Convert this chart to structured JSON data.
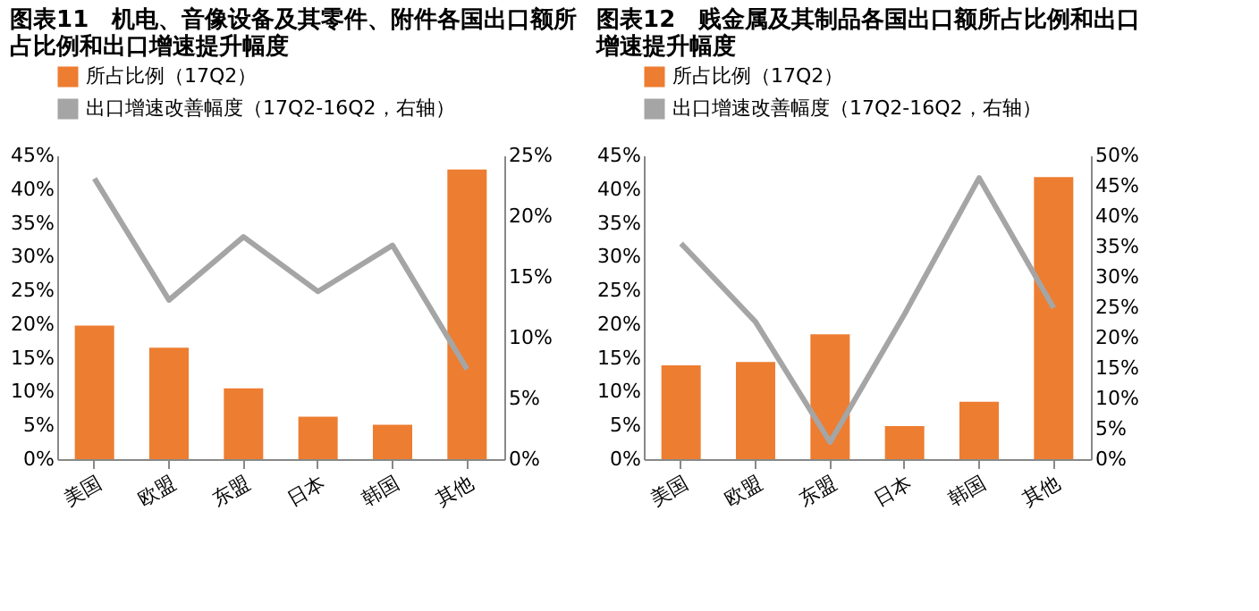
{
  "chart_data": [
    {
      "type": "bar",
      "title": [
        "图表11　机电、音像设备及其零件、附件各国出口额所",
        "占比例和出口增速提升幅度"
      ],
      "categories": [
        "美国",
        "欧盟",
        "东盟",
        "日本",
        "韩国",
        "其他"
      ],
      "legend": "top",
      "grid": false,
      "series": [
        {
          "name": "所占比例（17Q2）",
          "color": "#ed7d31",
          "values": [
            19.8,
            16.5,
            10.5,
            6.3,
            5.1,
            42.9
          ]
        },
        {
          "name": "出口增速改善幅度（17Q2-16Q2，右轴）",
          "color": "#a5a5a5",
          "type": "line",
          "axis": "y2",
          "values": [
            23.1,
            13.1,
            18.3,
            13.8,
            17.6,
            7.4
          ]
        }
      ],
      "ylim": [
        0,
        45
      ],
      "yticks": [
        {
          "value": 0,
          "label": "0%"
        },
        {
          "value": 5,
          "label": "5%"
        },
        {
          "value": 10,
          "label": "10%"
        },
        {
          "value": 15,
          "label": "15%"
        },
        {
          "value": 20,
          "label": "20%"
        },
        {
          "value": 25,
          "label": "25%"
        },
        {
          "value": 30,
          "label": "30%"
        },
        {
          "value": 35,
          "label": "35%"
        },
        {
          "value": 40,
          "label": "40%"
        },
        {
          "value": 45,
          "label": "45%"
        }
      ],
      "y2lim": [
        0,
        25
      ],
      "y2ticks": [
        {
          "value": 0,
          "label": "0%"
        },
        {
          "value": 5,
          "label": "5%"
        },
        {
          "value": 10,
          "label": "10%"
        },
        {
          "value": 15,
          "label": "15%"
        },
        {
          "value": 20,
          "label": "20%"
        },
        {
          "value": 25,
          "label": "25%"
        }
      ]
    },
    {
      "type": "bar",
      "title": [
        "图表12　贱金属及其制品各国出口额所占比例和出口",
        "增速提升幅度"
      ],
      "categories": [
        "美国",
        "欧盟",
        "东盟",
        "日本",
        "韩国",
        "其他"
      ],
      "legend": "top",
      "grid": false,
      "series": [
        {
          "name": "所占比例（17Q2）",
          "color": "#ed7d31",
          "values": [
            13.9,
            14.4,
            18.5,
            4.9,
            8.5,
            41.8
          ]
        },
        {
          "name": "出口增速改善幅度（17Q2-16Q2，右轴）",
          "color": "#a5a5a5",
          "type": "line",
          "axis": "y2",
          "values": [
            35.5,
            22.6,
            2.8,
            23.9,
            46.3,
            24.9
          ]
        }
      ],
      "ylim": [
        0,
        45
      ],
      "yticks": [
        {
          "value": 0,
          "label": "0%"
        },
        {
          "value": 5,
          "label": "5%"
        },
        {
          "value": 10,
          "label": "10%"
        },
        {
          "value": 15,
          "label": "15%"
        },
        {
          "value": 20,
          "label": "20%"
        },
        {
          "value": 25,
          "label": "25%"
        },
        {
          "value": 30,
          "label": "30%"
        },
        {
          "value": 35,
          "label": "35%"
        },
        {
          "value": 40,
          "label": "40%"
        },
        {
          "value": 45,
          "label": "45%"
        }
      ],
      "y2lim": [
        0,
        50
      ],
      "y2ticks": [
        {
          "value": 0,
          "label": "0%"
        },
        {
          "value": 5,
          "label": "5%"
        },
        {
          "value": 10,
          "label": "10%"
        },
        {
          "value": 15,
          "label": "15%"
        },
        {
          "value": 20,
          "label": "20%"
        },
        {
          "value": 25,
          "label": "25%"
        },
        {
          "value": 30,
          "label": "30%"
        },
        {
          "value": 35,
          "label": "35%"
        },
        {
          "value": 40,
          "label": "40%"
        },
        {
          "value": 45,
          "label": "45%"
        },
        {
          "value": 50,
          "label": "50%"
        }
      ]
    }
  ]
}
